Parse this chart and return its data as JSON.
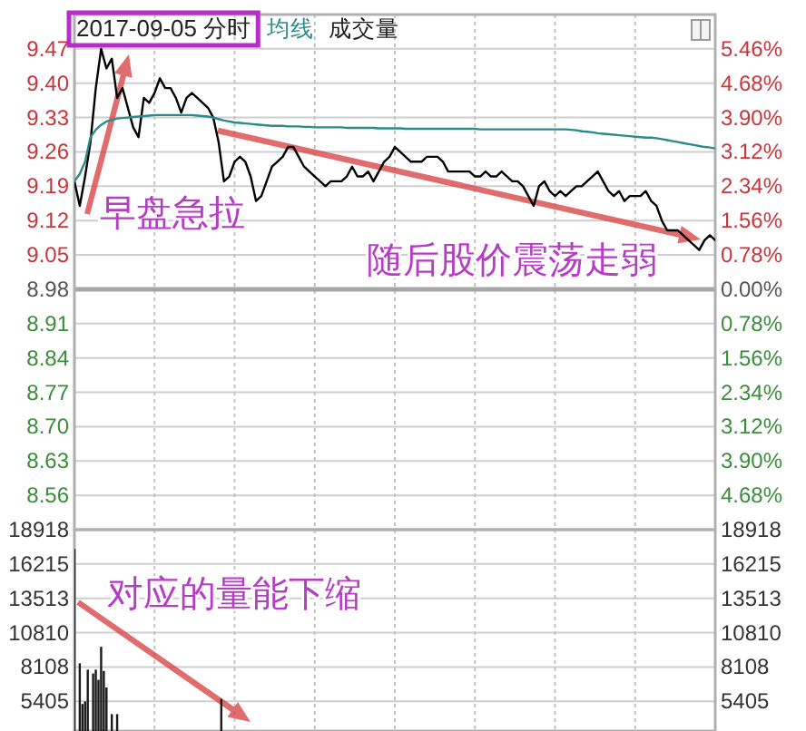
{
  "chart_data": [
    {
      "type": "line",
      "title": "2017-09-05 分时",
      "categories": [
        null,
        null,
        null,
        null,
        null,
        null,
        null,
        null,
        null,
        null,
        null,
        null,
        null,
        null,
        null,
        null,
        null,
        null,
        null,
        null,
        null,
        null,
        null,
        null,
        null,
        null,
        null,
        null,
        null,
        null,
        null,
        null,
        null,
        null,
        null,
        null,
        null,
        null,
        null,
        null,
        null,
        null,
        null,
        null,
        null,
        null,
        null,
        null,
        null,
        null,
        null,
        null,
        null,
        null,
        null,
        null,
        null,
        null,
        null,
        null,
        null,
        null,
        null,
        null,
        null,
        null,
        null,
        null,
        null,
        null,
        null,
        null,
        null,
        null,
        null,
        null,
        null,
        null,
        null,
        null,
        null,
        null,
        null,
        null,
        null,
        null,
        null,
        null,
        null,
        null,
        null,
        null,
        null,
        null,
        null,
        null,
        null,
        null,
        null,
        null,
        null,
        null,
        null,
        null,
        null,
        null,
        null,
        null,
        null,
        null,
        null,
        null,
        null,
        null,
        null,
        null,
        null,
        null,
        null,
        null,
        null
      ],
      "series": [
        {
          "color": "#000000",
          "values": [
            9.2,
            9.15,
            9.21,
            9.28,
            9.39,
            9.47,
            9.43,
            9.45,
            9.37,
            9.39,
            9.35,
            9.31,
            9.29,
            9.37,
            9.36,
            9.38,
            9.41,
            9.39,
            9.39,
            9.37,
            9.34,
            9.37,
            9.38,
            9.37,
            9.36,
            9.35,
            9.33,
            9.28,
            9.2,
            9.21,
            9.24,
            9.25,
            9.24,
            9.21,
            9.16,
            9.17,
            9.2,
            9.23,
            9.24,
            9.25,
            9.27,
            9.27,
            9.25,
            9.23,
            9.22,
            9.21,
            9.2,
            9.19,
            9.2,
            9.2,
            9.2,
            9.21,
            9.23,
            9.21,
            9.21,
            9.22,
            9.2,
            9.22,
            9.24,
            9.25,
            9.27,
            9.26,
            9.25,
            9.24,
            9.24,
            9.24,
            9.25,
            9.25,
            9.25,
            9.24,
            9.22,
            9.22,
            9.22,
            9.22,
            9.22,
            9.21,
            9.21,
            9.22,
            9.21,
            9.21,
            9.22,
            9.21,
            9.2,
            9.2,
            9.19,
            9.17,
            9.15,
            9.19,
            9.2,
            9.18,
            9.17,
            9.18,
            9.17,
            9.18,
            9.19,
            9.19,
            9.2,
            9.21,
            9.22,
            9.2,
            9.18,
            9.17,
            9.18,
            9.16,
            9.17,
            9.17,
            9.17,
            9.18,
            9.16,
            9.15,
            9.12,
            9.1,
            9.1,
            9.1,
            9.09,
            9.08,
            9.07,
            9.06,
            9.08,
            9.09,
            9.08
          ]
        },
        {
          "name": "均线",
          "color": "#2b8a8a",
          "values": [
            9.2,
            9.215,
            9.24,
            9.29,
            9.305,
            9.315,
            9.322,
            9.325,
            9.328,
            9.329,
            9.33,
            9.331,
            9.332,
            9.333,
            9.334,
            9.335,
            9.335,
            9.335,
            9.335,
            9.335,
            9.335,
            9.335,
            9.335,
            9.334,
            9.333,
            9.332,
            9.33,
            9.327,
            9.324,
            9.322,
            9.32,
            9.319,
            9.318,
            9.317,
            9.316,
            9.315,
            9.314,
            9.313,
            9.313,
            9.313,
            9.312,
            9.312,
            9.312,
            9.311,
            9.311,
            9.31,
            9.31,
            9.31,
            9.31,
            9.31,
            9.31,
            9.309,
            9.309,
            9.309,
            9.309,
            9.309,
            9.309,
            9.308,
            9.308,
            9.308,
            9.308,
            9.308,
            9.307,
            9.307,
            9.307,
            9.307,
            9.307,
            9.307,
            9.307,
            9.307,
            9.307,
            9.307,
            9.307,
            9.307,
            9.307,
            9.307,
            9.306,
            9.306,
            9.306,
            9.306,
            9.306,
            9.306,
            9.306,
            9.306,
            9.306,
            9.306,
            9.306,
            9.306,
            9.306,
            9.306,
            9.306,
            9.306,
            9.306,
            9.305,
            9.304,
            9.302,
            9.301,
            9.3,
            9.298,
            9.297,
            9.296,
            9.295,
            9.294,
            9.293,
            9.292,
            9.291,
            9.29,
            9.289,
            9.289,
            9.288,
            9.286,
            9.284,
            9.282,
            9.28,
            9.278,
            9.276,
            9.274,
            9.272,
            9.27,
            9.269,
            9.267
          ]
        }
      ],
      "ylim": [
        8.49,
        9.54
      ],
      "yticks": [
        9.47,
        {
          "value": 9.4,
          "label": "9.40"
        },
        9.33,
        9.26,
        9.19,
        9.12,
        9.05,
        8.98,
        8.91,
        8.84,
        8.77,
        {
          "value": 8.7,
          "label": "8.70"
        },
        8.63,
        8.56
      ],
      "y2lim": [
        -5.46,
        6.24
      ],
      "y2ticks": [
        {
          "value": 5.46,
          "label": "5.46%"
        },
        {
          "value": 4.68,
          "label": "4.68%"
        },
        {
          "value": 3.9,
          "label": "3.90%"
        },
        {
          "value": 3.12,
          "label": "3.12%"
        },
        {
          "value": 2.34,
          "label": "2.34%"
        },
        {
          "value": 1.56,
          "label": "1.56%"
        },
        {
          "value": 0.78,
          "label": "0.78%"
        },
        {
          "value": 0,
          "label": "0.00%"
        },
        {
          "value": -0.78,
          "label": "0.78%"
        },
        {
          "value": -1.56,
          "label": "1.56%"
        },
        {
          "value": -2.34,
          "label": "2.34%"
        },
        {
          "value": -3.12,
          "label": "3.12%"
        },
        {
          "value": -3.9,
          "label": "3.90%"
        },
        {
          "value": -4.68,
          "label": "4.68%"
        }
      ],
      "ref_lines": [
        {
          "axis": "y",
          "value": 8.98,
          "color": "#a6a6a6"
        }
      ],
      "grid": true,
      "legend": "top",
      "annotations": [
        "早盘急拉",
        "随后股价震荡走弱"
      ]
    },
    {
      "type": "bar",
      "categories": [
        null,
        null,
        null,
        null,
        null,
        null,
        null,
        null,
        null,
        null,
        null,
        null,
        null,
        null,
        null,
        null,
        null,
        null,
        null,
        null,
        null,
        null,
        null,
        null,
        null,
        null,
        null,
        null,
        null,
        null,
        null,
        null,
        null,
        null,
        null,
        null,
        null,
        null,
        null,
        null,
        null,
        null,
        null,
        null,
        null,
        null,
        null,
        null,
        null,
        null,
        null,
        null,
        null,
        null,
        null,
        null,
        null,
        null,
        null,
        null,
        null,
        null,
        null,
        null,
        null,
        null,
        null,
        null,
        null,
        null,
        null,
        null,
        null,
        null,
        null,
        null,
        null,
        null,
        null,
        null,
        null,
        null,
        null,
        null,
        null,
        null,
        null,
        null,
        null,
        null,
        null,
        null,
        null,
        null,
        null,
        null,
        null,
        null,
        null,
        null,
        null,
        null,
        null,
        null,
        null,
        null,
        null,
        null,
        null,
        null,
        null,
        null,
        null,
        null,
        null,
        null,
        null,
        null,
        null,
        null,
        null,
        null,
        null,
        null,
        null,
        null,
        null,
        null,
        null,
        null,
        null,
        null,
        null,
        null,
        null,
        null,
        null,
        null,
        null,
        null,
        null,
        null,
        null,
        null,
        null,
        null,
        null,
        null,
        null,
        null,
        null,
        null,
        null,
        null,
        null,
        null,
        null,
        null,
        null,
        null,
        null,
        null,
        null,
        null,
        null,
        null,
        null,
        null,
        null,
        null,
        null,
        null,
        null,
        null,
        null,
        null,
        null,
        null,
        null,
        null,
        null,
        null,
        null,
        null,
        null,
        null,
        null,
        null,
        null,
        null,
        null,
        null,
        null,
        null,
        null,
        null,
        null,
        null,
        null,
        null,
        null,
        null,
        null,
        null,
        null,
        null,
        null,
        null,
        null,
        null,
        null,
        null,
        null,
        null,
        null,
        null,
        null,
        null,
        null,
        null,
        null,
        null,
        null,
        null,
        null,
        null,
        null,
        null,
        null,
        null,
        null,
        null,
        null,
        null,
        null,
        null,
        null,
        null,
        null,
        null,
        null
      ],
      "series": [
        {
          "name": "成交量",
          "color": "#1a1a1a",
          "values": [
            17400,
            null,
            8400,
            5200,
            5400,
            7900,
            null,
            7600,
            7900,
            7100,
            9700,
            7800,
            6500,
            null,
            4400,
            null,
            4400,
            null,
            null,
            null,
            null,
            null,
            null,
            null,
            null,
            null,
            null,
            null,
            null,
            null,
            null,
            null,
            null,
            null,
            null,
            null,
            null,
            null,
            null,
            null,
            null,
            null,
            null,
            null,
            null,
            null,
            null,
            null,
            null,
            null,
            null,
            null,
            null,
            null,
            null,
            5600,
            null,
            null,
            null,
            null,
            null,
            null,
            null,
            null,
            null,
            null,
            null,
            null,
            null,
            null,
            null,
            null,
            null,
            null,
            null,
            null,
            null,
            null,
            null,
            null,
            null,
            null,
            null,
            null,
            null,
            null,
            null,
            null,
            null,
            null,
            null,
            null,
            null,
            null,
            null,
            null,
            null,
            null,
            null,
            null,
            null,
            null,
            null,
            null,
            null,
            null,
            null,
            null,
            null,
            null,
            null,
            null,
            null,
            null,
            null,
            null,
            null,
            null,
            null,
            null,
            null,
            null,
            null,
            null,
            null,
            null,
            null,
            null,
            null,
            null,
            null,
            null,
            null,
            null,
            null,
            null,
            null,
            null,
            null,
            null,
            null,
            null,
            null,
            null,
            null,
            null,
            null,
            null,
            null,
            null,
            null,
            null,
            null,
            null,
            null,
            null,
            null,
            null,
            null,
            null,
            null,
            null,
            null,
            null,
            null,
            null,
            null,
            null,
            null,
            null,
            null,
            null,
            null,
            null,
            null,
            null,
            null,
            null,
            null,
            null,
            null,
            null,
            null,
            null,
            null,
            null,
            null,
            null,
            null,
            null,
            null,
            null,
            null,
            null,
            null,
            null,
            null,
            null,
            null,
            null,
            null,
            null,
            null,
            null,
            null,
            null,
            null,
            null,
            null,
            null,
            null,
            null,
            null,
            null,
            null,
            null,
            null,
            null,
            null,
            null,
            null,
            null,
            null,
            null,
            null,
            null,
            null,
            null,
            null,
            null,
            null,
            null,
            null,
            null,
            null,
            null,
            null,
            null,
            null,
            null,
            null
          ]
        }
      ],
      "ylim": [
        3072,
        18918
      ],
      "yticks": [
        18918,
        16215,
        13513,
        10810,
        8108,
        5405
      ],
      "y2lim": [
        3072,
        18918
      ],
      "y2ticks": [
        18918,
        16215,
        13513,
        10810,
        8108,
        5405
      ],
      "grid": true,
      "legend": "top",
      "annotations": [
        "对应的量能下缩"
      ]
    }
  ]
}
